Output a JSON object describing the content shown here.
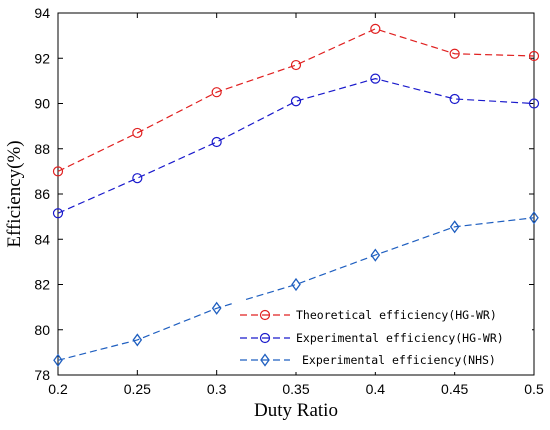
{
  "chart_data": {
    "type": "line",
    "xlabel": "Duty Ratio",
    "ylabel": "Efficiency(%)",
    "xlim": [
      0.2,
      0.5
    ],
    "ylim": [
      78,
      94
    ],
    "x": [
      0.2,
      0.25,
      0.3,
      0.35,
      0.4,
      0.45,
      0.5
    ],
    "x_tick_labels": [
      "0.2",
      "0.25",
      "0.3",
      "0.35",
      "0.4",
      "0.45",
      "0.5"
    ],
    "y_ticks": [
      78,
      80,
      82,
      84,
      86,
      88,
      90,
      92,
      94
    ],
    "grid": false,
    "legend_position": "bottom-right",
    "series": [
      {
        "name": "Theoretical efficiency(HG-WR)",
        "values": [
          87.0,
          88.7,
          90.5,
          91.7,
          93.3,
          92.2,
          92.1
        ],
        "color": "#e02020",
        "marker": "circle"
      },
      {
        "name": "Experimental efficiency(HG-WR)",
        "values": [
          85.15,
          86.7,
          88.3,
          90.1,
          91.1,
          90.2,
          90.0
        ],
        "color": "#1a1acc",
        "marker": "circle"
      },
      {
        "name": "Experimental efficiency(NHS)",
        "values": [
          78.65,
          79.55,
          80.95,
          82.0,
          83.3,
          84.55,
          84.95
        ],
        "color": "#1f5fc0",
        "marker": "diamond"
      }
    ]
  }
}
